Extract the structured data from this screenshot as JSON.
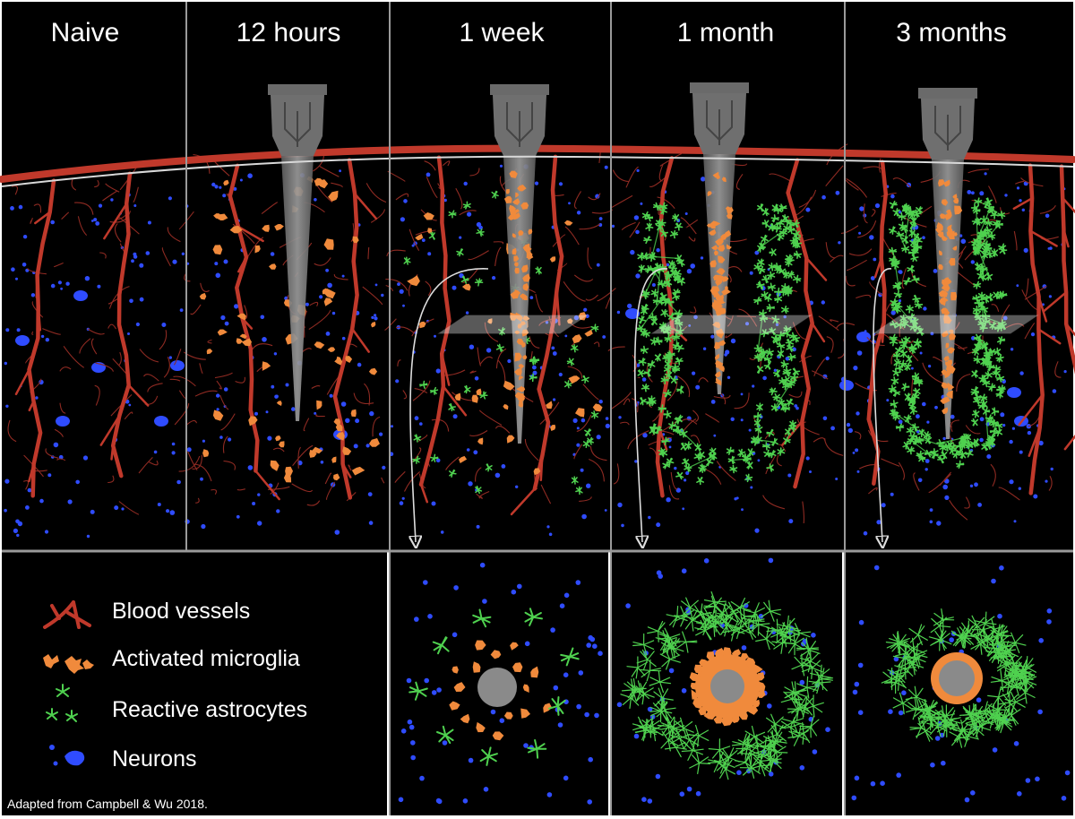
{
  "stages": [
    {
      "label": "Naive"
    },
    {
      "label": "12 hours"
    },
    {
      "label": "1 week"
    },
    {
      "label": "1 month"
    },
    {
      "label": "3 months"
    }
  ],
  "legend": [
    {
      "label": "Blood vessels",
      "icon": "blood-vessel-icon",
      "color": "#c0392b"
    },
    {
      "label": "Activated microglia",
      "icon": "microglia-icon",
      "color": "#f08a3c"
    },
    {
      "label": "Reactive astrocytes",
      "icon": "astrocyte-icon",
      "color": "#4fd14f"
    },
    {
      "label": "Neurons",
      "icon": "neuron-icon",
      "color": "#2f4cff"
    }
  ],
  "credit": "Adapted from Campbell & Wu 2018.",
  "colors": {
    "background": "#000000",
    "divider": "#9a9a9a",
    "vessel": "#c0392b",
    "microglia": "#f08a3c",
    "astrocyte": "#4fd14f",
    "neuron": "#2f4cff",
    "probe": "#8a8a8a"
  }
}
